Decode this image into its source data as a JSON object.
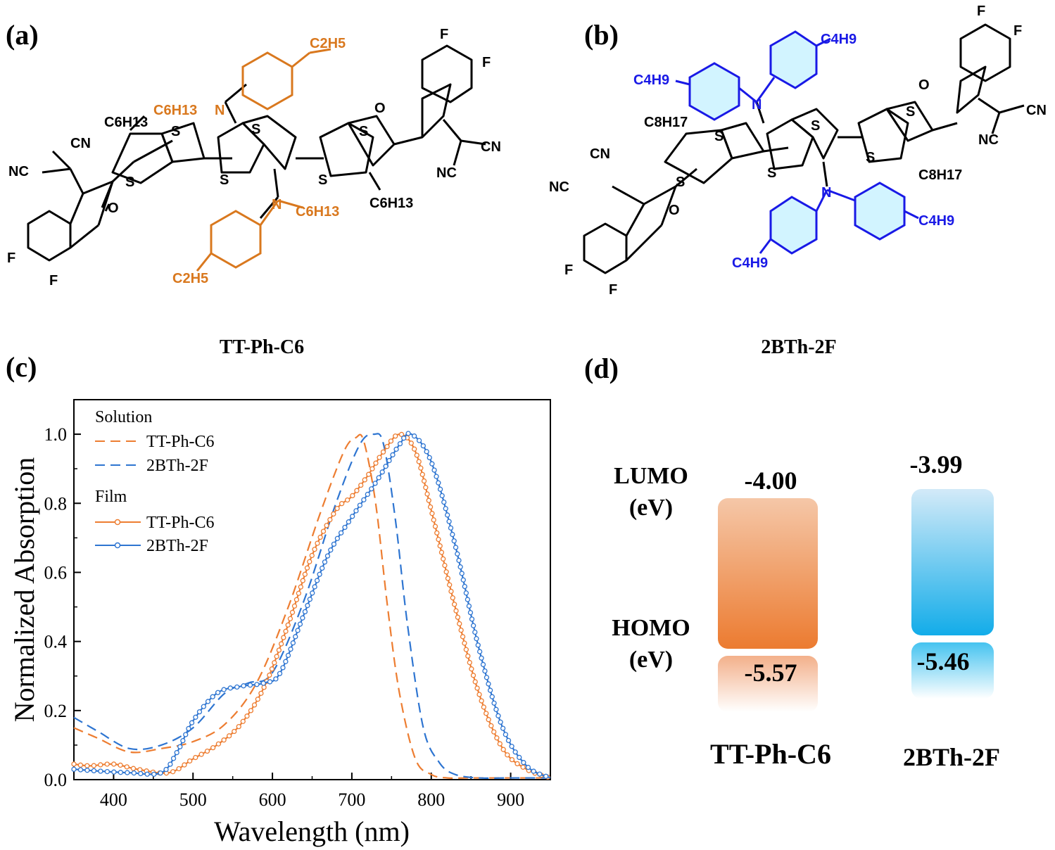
{
  "panels": {
    "a": {
      "label": "(a)",
      "molecule": "TT-Ph-C6",
      "atoms": {
        "F": "F",
        "CN": "CN",
        "NC": "NC",
        "O": "O",
        "S": "S",
        "N": "N",
        "C6H13": "C6H13",
        "C2H5": "C2H5"
      }
    },
    "b": {
      "label": "(b)",
      "molecule": "2BTh-2F",
      "atoms": {
        "F": "F",
        "CN": "CN",
        "NC": "NC",
        "O": "O",
        "S": "S",
        "N": "N",
        "C8H17": "C8H17",
        "C4H9": "C4H9"
      }
    },
    "c": {
      "label": "(c)"
    },
    "d": {
      "label": "(d)"
    }
  },
  "colors": {
    "orange": "#ED7D31",
    "blue": "#2E75D1",
    "mol_orange": "#D9781E",
    "mol_blue": "#1919E6"
  },
  "chart_data": [
    {
      "type": "line",
      "title": "",
      "xlabel": "Wavelength (nm)",
      "ylabel": "Normalized Absorption",
      "xlim": [
        350,
        950
      ],
      "ylim": [
        0,
        1.1
      ],
      "xticks": [
        400,
        500,
        600,
        700,
        800,
        900
      ],
      "yticks": [
        "0.0",
        "0.2",
        "0.4",
        "0.6",
        "0.8",
        "1.0"
      ],
      "legend": {
        "groups": [
          "Solution",
          "Film"
        ],
        "entries": [
          "TT-Ph-C6",
          "2BTh-2F",
          "TT-Ph-C6",
          "2BTh-2F"
        ]
      },
      "series": [
        {
          "name": "TT-Ph-C6",
          "group": "Solution",
          "style": "dashed",
          "color": "#ED7D31",
          "x": [
            350,
            380,
            420,
            460,
            500,
            540,
            580,
            620,
            660,
            690,
            705,
            715,
            730,
            745,
            760,
            780,
            800,
            820,
            850,
            900,
            950
          ],
          "y": [
            0.15,
            0.12,
            0.08,
            0.09,
            0.11,
            0.16,
            0.28,
            0.5,
            0.77,
            0.95,
            0.99,
            0.98,
            0.8,
            0.5,
            0.25,
            0.06,
            0.015,
            0.005,
            0.005,
            0.005,
            0.005
          ]
        },
        {
          "name": "2BTh-2F",
          "group": "Solution",
          "style": "dashed",
          "color": "#2E75D1",
          "x": [
            350,
            380,
            420,
            460,
            500,
            540,
            570,
            600,
            640,
            680,
            710,
            728,
            740,
            755,
            770,
            790,
            810,
            830,
            860,
            900,
            950
          ],
          "y": [
            0.18,
            0.14,
            0.09,
            0.1,
            0.15,
            0.25,
            0.28,
            0.31,
            0.52,
            0.8,
            0.97,
            1.0,
            0.97,
            0.75,
            0.45,
            0.15,
            0.05,
            0.015,
            0.005,
            0.005,
            0.005
          ]
        },
        {
          "name": "TT-Ph-C6",
          "group": "Film",
          "style": "line-marker",
          "color": "#ED7D31",
          "x": [
            350,
            370,
            400,
            430,
            470,
            500,
            530,
            560,
            590,
            620,
            650,
            680,
            700,
            720,
            740,
            760,
            780,
            800,
            830,
            860,
            890,
            920,
            950
          ],
          "y": [
            0.045,
            0.04,
            0.045,
            0.03,
            0.02,
            0.06,
            0.1,
            0.16,
            0.27,
            0.45,
            0.65,
            0.78,
            0.82,
            0.88,
            0.95,
            1.0,
            0.95,
            0.78,
            0.5,
            0.25,
            0.09,
            0.03,
            0.005
          ]
        },
        {
          "name": "2BTh-2F",
          "group": "Film",
          "style": "line-marker",
          "color": "#2E75D1",
          "x": [
            350,
            380,
            420,
            460,
            480,
            500,
            530,
            560,
            590,
            610,
            640,
            670,
            700,
            730,
            760,
            775,
            800,
            830,
            860,
            890,
            920,
            950
          ],
          "y": [
            0.03,
            0.025,
            0.02,
            0.02,
            0.08,
            0.17,
            0.25,
            0.27,
            0.28,
            0.31,
            0.48,
            0.65,
            0.76,
            0.86,
            0.97,
            1.0,
            0.92,
            0.68,
            0.38,
            0.15,
            0.04,
            0.005
          ]
        }
      ]
    },
    {
      "type": "bar",
      "title": "",
      "categories": [
        "TT-Ph-C6",
        "2BTh-2F"
      ],
      "row_labels": {
        "lumo": "LUMO",
        "homo": "HOMO",
        "unit": "(eV)"
      },
      "lumo": [
        -4.0,
        -3.99
      ],
      "homo": [
        -5.57,
        -5.46
      ],
      "lumo_labels": [
        "-4.00",
        "-3.99"
      ],
      "homo_labels": [
        "-5.57",
        "-5.46"
      ],
      "ylim": [
        -6.0,
        -3.7
      ]
    }
  ]
}
